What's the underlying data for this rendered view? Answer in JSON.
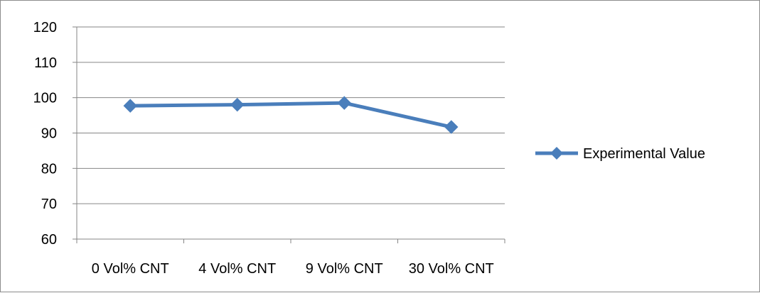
{
  "chart_data": {
    "type": "line",
    "categories": [
      "0 Vol% CNT",
      "4 Vol% CNT",
      "9 Vol% CNT",
      "30 Vol% CNT"
    ],
    "series": [
      {
        "name": "Experimental Value",
        "values": [
          97.7,
          98.0,
          98.5,
          91.7
        ],
        "color": "#4a7ebb",
        "marker": "diamond"
      }
    ],
    "yticks": [
      60,
      70,
      80,
      90,
      100,
      110,
      120
    ],
    "ylim": [
      60,
      120
    ],
    "grid": true,
    "legend": "right"
  }
}
